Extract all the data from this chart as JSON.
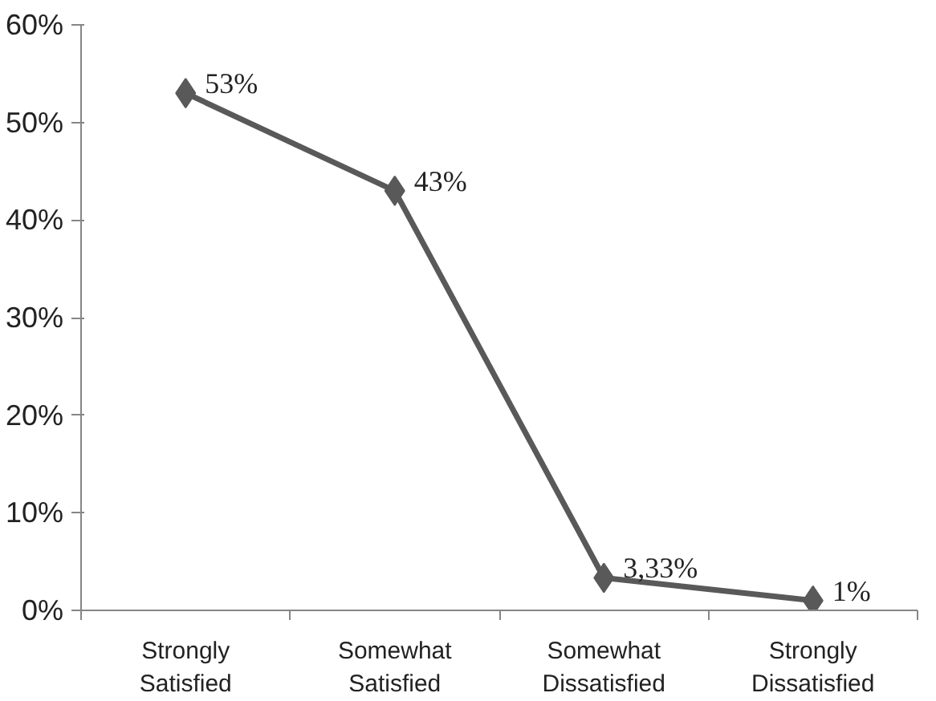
{
  "chart_data": {
    "type": "line",
    "categories": [
      "Strongly\nSatisfied",
      "Somewhat\nSatisfied",
      "Somewhat\nDissatisfied",
      "Strongly\nDissatisfied"
    ],
    "series": [
      {
        "color": "#595959",
        "values": [
          53,
          43,
          3.33,
          1
        ],
        "value_labels": [
          "53%",
          "43%",
          "3,33%",
          "1%"
        ]
      }
    ],
    "ylim": [
      0,
      60
    ],
    "yticks": [
      {
        "value": 0,
        "label": "0%"
      },
      {
        "value": 10,
        "label": "10%"
      },
      {
        "value": 20,
        "label": "20%"
      },
      {
        "value": 30,
        "label": "30%"
      },
      {
        "value": 40,
        "label": "40%"
      },
      {
        "value": 50,
        "label": "50%"
      },
      {
        "value": 60,
        "label": "60%"
      }
    ],
    "grid": false,
    "marker": "diamond",
    "line_style": "solid"
  }
}
